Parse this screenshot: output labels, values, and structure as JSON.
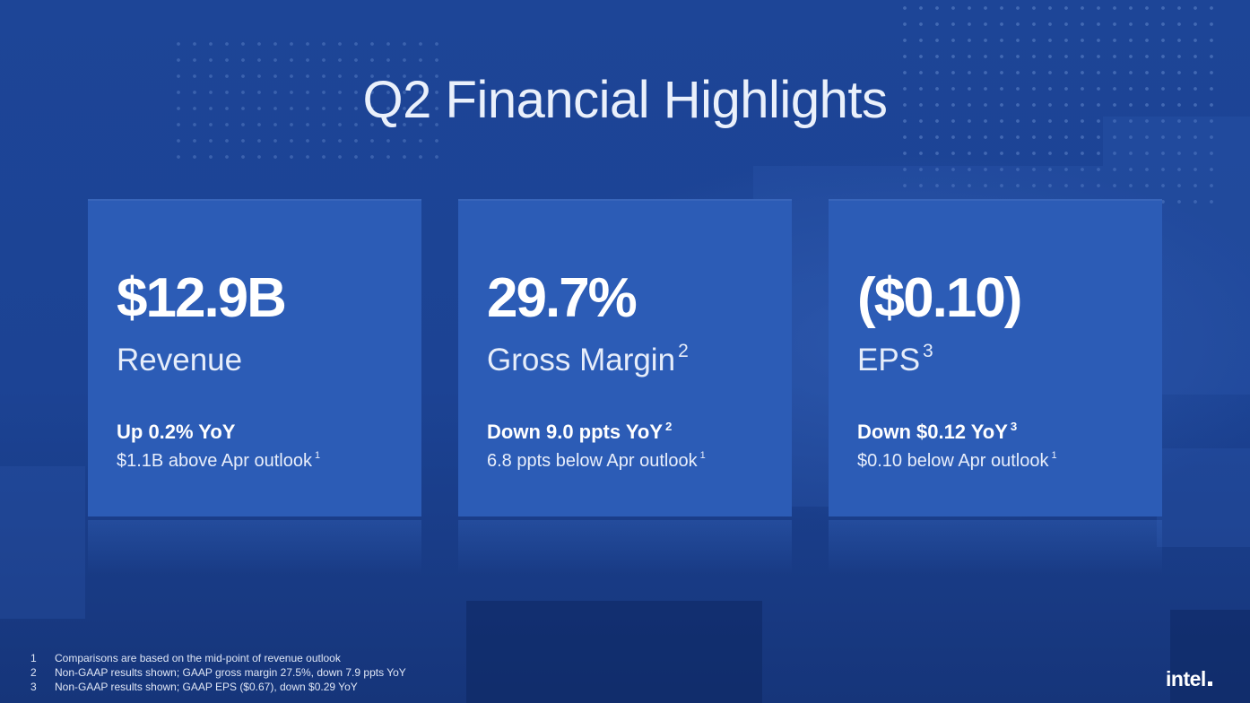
{
  "title": "Q2 Financial Highlights",
  "cards": [
    {
      "metric": "$12.9B",
      "label": "Revenue",
      "label_note": "",
      "change": "Up 0.2% YoY",
      "change_note": "",
      "outlook": "$1.1B above Apr outlook",
      "outlook_note": "1"
    },
    {
      "metric": "29.7%",
      "label": "Gross Margin",
      "label_note": "2",
      "change": "Down 9.0 ppts YoY",
      "change_note": "2",
      "outlook": "6.8 ppts below Apr outlook",
      "outlook_note": "1"
    },
    {
      "metric": "($0.10)",
      "label": "EPS",
      "label_note": "3",
      "change": "Down $0.12 YoY",
      "change_note": "3",
      "outlook": "$0.10 below Apr outlook",
      "outlook_note": "1"
    }
  ],
  "footnotes": [
    {
      "num": "1",
      "text": "Comparisons are based on the mid-point of revenue outlook"
    },
    {
      "num": "2",
      "text": "Non-GAAP results shown; GAAP gross margin 27.5%, down 7.9 ppts YoY"
    },
    {
      "num": "3",
      "text": "Non-GAAP results shown; GAAP EPS ($0.67), down $0.29 YoY"
    }
  ],
  "logo": "intel",
  "colors": {
    "background": "#1d4597",
    "card": "#2c5cb6",
    "text": "#ffffff"
  }
}
